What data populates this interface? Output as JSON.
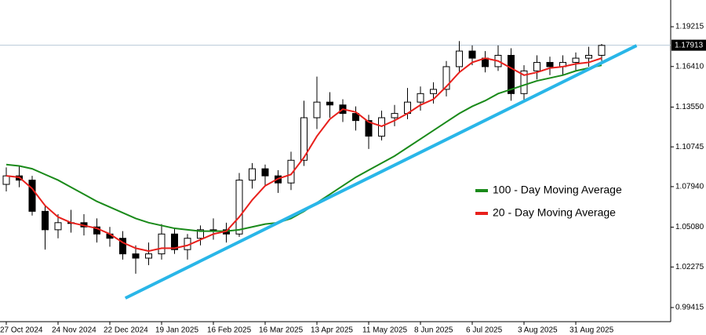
{
  "chart_data": {
    "type": "candlestick",
    "categories": [
      "27 Oct 2024",
      null,
      null,
      null,
      "24 Nov 2024",
      null,
      null,
      null,
      "22 Dec 2024",
      null,
      null,
      null,
      "19 Jan 2025",
      null,
      null,
      null,
      "16 Feb 2025",
      null,
      null,
      null,
      "16 Mar 2025",
      null,
      null,
      null,
      "13 Apr 2025",
      null,
      null,
      null,
      "11 May 2025",
      null,
      null,
      null,
      "8 Jun 2025",
      null,
      null,
      null,
      "6 Jul 2025",
      null,
      null,
      null,
      "3 Aug 2025",
      null,
      null,
      null,
      "31 Aug 2025",
      null,
      null
    ],
    "open": [
      1.081,
      1.087,
      1.084,
      1.062,
      1.049,
      1.054,
      1.054,
      1.051,
      1.046,
      1.043,
      1.032,
      1.029,
      1.032,
      1.046,
      1.035,
      1.043,
      1.049,
      1.049,
      1.046,
      1.084,
      1.092,
      1.087,
      1.082,
      1.098,
      1.128,
      1.139,
      1.137,
      1.131,
      1.126,
      1.115,
      1.128,
      1.131,
      1.139,
      1.145,
      1.148,
      1.164,
      1.175,
      1.17,
      1.164,
      1.172,
      1.145,
      1.161,
      1.167,
      1.164,
      1.167,
      1.17,
      1.172
    ],
    "high": [
      1.093,
      1.094,
      1.087,
      1.066,
      1.06,
      1.063,
      1.06,
      1.057,
      1.051,
      1.048,
      1.038,
      1.04,
      1.053,
      1.05,
      1.046,
      1.052,
      1.057,
      1.054,
      1.089,
      1.096,
      1.095,
      1.091,
      1.104,
      1.14,
      1.157,
      1.146,
      1.141,
      1.136,
      1.13,
      1.133,
      1.137,
      1.149,
      1.15,
      1.153,
      1.168,
      1.182,
      1.179,
      1.175,
      1.179,
      1.177,
      1.165,
      1.172,
      1.171,
      1.172,
      1.174,
      1.178,
      1.18
    ],
    "low": [
      1.076,
      1.079,
      1.059,
      1.035,
      1.043,
      1.047,
      1.045,
      1.04,
      1.037,
      1.028,
      1.018,
      1.024,
      1.028,
      1.032,
      1.028,
      1.038,
      1.042,
      1.04,
      1.044,
      1.078,
      1.08,
      1.075,
      1.077,
      1.094,
      1.12,
      1.128,
      1.125,
      1.119,
      1.106,
      1.112,
      1.122,
      1.127,
      1.133,
      1.138,
      1.143,
      1.16,
      1.165,
      1.16,
      1.161,
      1.14,
      1.139,
      1.155,
      1.158,
      1.158,
      1.161,
      1.164,
      1.168
    ],
    "close": [
      1.087,
      1.084,
      1.062,
      1.049,
      1.054,
      1.054,
      1.051,
      1.046,
      1.043,
      1.032,
      1.029,
      1.032,
      1.046,
      1.035,
      1.043,
      1.049,
      1.049,
      1.046,
      1.084,
      1.092,
      1.087,
      1.082,
      1.098,
      1.128,
      1.139,
      1.137,
      1.131,
      1.126,
      1.115,
      1.128,
      1.131,
      1.139,
      1.145,
      1.148,
      1.164,
      1.175,
      1.17,
      1.164,
      1.172,
      1.145,
      1.161,
      1.167,
      1.164,
      1.167,
      1.17,
      1.172,
      1.179
    ],
    "series": [
      {
        "name": "100 - Day Moving Average",
        "color": "#1a8a1a",
        "values": [
          1.095,
          1.094,
          1.092,
          1.088,
          1.084,
          1.079,
          1.074,
          1.069,
          1.065,
          1.061,
          1.057,
          1.054,
          1.052,
          1.05,
          1.049,
          1.048,
          1.048,
          1.048,
          1.049,
          1.051,
          1.053,
          1.054,
          1.057,
          1.062,
          1.068,
          1.074,
          1.08,
          1.086,
          1.091,
          1.096,
          1.101,
          1.107,
          1.113,
          1.119,
          1.125,
          1.131,
          1.136,
          1.14,
          1.145,
          1.148,
          1.151,
          1.154,
          1.156,
          1.158,
          1.161,
          1.163,
          1.165
        ]
      },
      {
        "name": "20 - Day Moving Average",
        "color": "#e8201c",
        "values": [
          1.087,
          1.086,
          1.078,
          1.066,
          1.058,
          1.054,
          1.052,
          1.05,
          1.046,
          1.04,
          1.036,
          1.034,
          1.036,
          1.036,
          1.038,
          1.042,
          1.046,
          1.048,
          1.058,
          1.07,
          1.08,
          1.085,
          1.088,
          1.1,
          1.115,
          1.127,
          1.134,
          1.132,
          1.125,
          1.122,
          1.126,
          1.131,
          1.137,
          1.141,
          1.15,
          1.16,
          1.167,
          1.17,
          1.168,
          1.163,
          1.158,
          1.16,
          1.163,
          1.164,
          1.166,
          1.167,
          1.17
        ]
      }
    ],
    "trendline": {
      "color": "#29b6e8",
      "x": [
        9.2,
        48.7
      ],
      "y": [
        1.0008,
        1.1789
      ]
    },
    "current_price": 1.17913,
    "ylim": [
      0.9842,
      1.211
    ],
    "yticks": [
      1.19215,
      {
        "value": 1.1641,
        "label": "1.16410"
      },
      {
        "value": 1.1355,
        "label": "1.13550"
      },
      1.10745,
      {
        "value": 1.0794,
        "label": "1.07940"
      },
      {
        "value": 1.0508,
        "label": "1.05080"
      },
      1.02275,
      0.99415
    ],
    "legend": "right"
  }
}
